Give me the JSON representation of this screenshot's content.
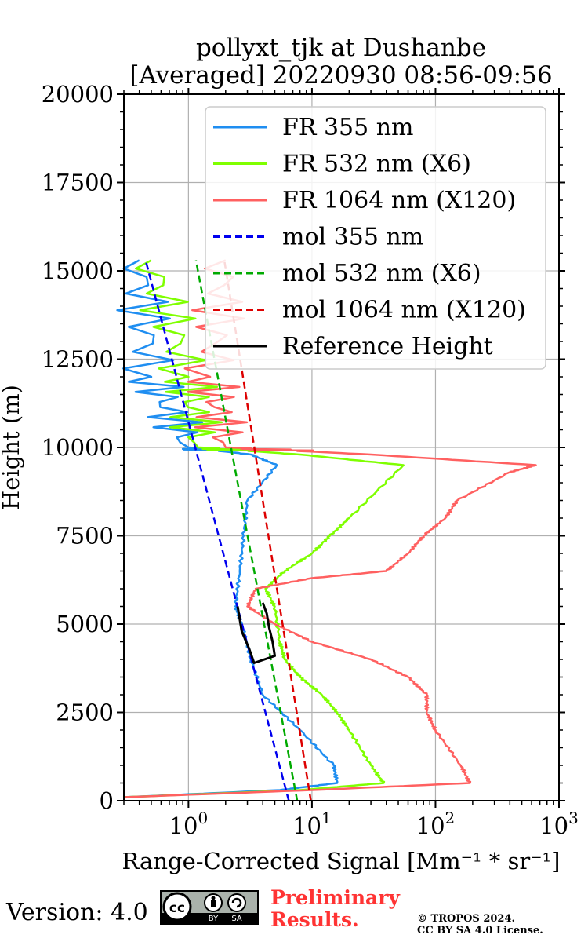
{
  "chart_data": {
    "type": "line",
    "title_line1": "pollyxt_tjk at Dushanbe",
    "title_line2": "[Averaged] 20220930 08:56-09:56",
    "xlabel": "Range-Corrected Signal [Mm⁻¹ * sr⁻¹]",
    "ylabel": "Height (m)",
    "xscale": "log",
    "xlim": [
      0.3,
      1000
    ],
    "ylim": [
      0,
      20000
    ],
    "yticks": [
      "0",
      "2500",
      "5000",
      "7500",
      "10000",
      "12500",
      "15000",
      "17500",
      "20000"
    ],
    "xticks": [
      {
        "base": "10",
        "exp": "0"
      },
      {
        "base": "10",
        "exp": "1"
      },
      {
        "base": "10",
        "exp": "2"
      },
      {
        "base": "10",
        "exp": "3"
      }
    ],
    "grid": true,
    "legend_position": "top-right",
    "series": [
      {
        "name": "FR 355 nm",
        "color": "#1f8ef1",
        "style": "solid",
        "x": [
          0.3,
          5.5,
          16,
          15,
          8,
          4,
          3.2,
          2.7,
          2.4,
          2.6,
          2.8,
          3.0,
          5.2,
          3.2,
          1.0,
          0.5,
          0.4
        ],
        "y": [
          100,
          300,
          500,
          1000,
          2000,
          3000,
          4000,
          5000,
          5500,
          6500,
          7500,
          8500,
          9500,
          9800,
          10000,
          12000,
          15300
        ]
      },
      {
        "name": "FR 532 nm (X6)",
        "color": "#7fff00",
        "style": "solid",
        "x": [
          0.3,
          8,
          38,
          30,
          20,
          16,
          12,
          8,
          6,
          5.5,
          5.0,
          4.2,
          6.0,
          10,
          14,
          20,
          55,
          8,
          1.2,
          1.0,
          0.5
        ],
        "y": [
          100,
          300,
          500,
          1000,
          2000,
          2500,
          3000,
          3500,
          4000,
          4500,
          5500,
          6000,
          6500,
          7000,
          7500,
          8000,
          9500,
          9800,
          10000,
          12000,
          15300
        ]
      },
      {
        "name": "FR 1064 nm (X120)",
        "color": "#ff6060",
        "style": "solid",
        "x": [
          0.3,
          10,
          190,
          160,
          100,
          85,
          85,
          60,
          30,
          10,
          5,
          3,
          3.5,
          10,
          40,
          60,
          80,
          120,
          150,
          400,
          650,
          30,
          2,
          1.5,
          2
        ],
        "y": [
          100,
          300,
          500,
          1000,
          2000,
          2500,
          3000,
          3500,
          4000,
          4500,
          5000,
          5500,
          6000,
          6300,
          6500,
          7000,
          7500,
          8000,
          8500,
          9300,
          9500,
          9800,
          10000,
          12000,
          15300
        ]
      },
      {
        "name": "mol 355 nm",
        "color": "#0000ee",
        "style": "dashed",
        "x": [
          6.5,
          0.45
        ],
        "y": [
          0,
          15300
        ]
      },
      {
        "name": "mol 532 nm (X6)",
        "color": "#00aa00",
        "style": "dashed",
        "x": [
          7.6,
          1.15
        ],
        "y": [
          0,
          15300
        ]
      },
      {
        "name": "mol 1064 nm (X120)",
        "color": "#dd0000",
        "style": "dashed",
        "x": [
          9.8,
          1.95
        ],
        "y": [
          0,
          15300
        ]
      },
      {
        "name": "Reference Height",
        "color": "#000000",
        "style": "solid",
        "x": [
          2.5,
          2.7,
          3.1,
          3.4,
          5.0,
          4.8,
          4.5,
          4.3,
          4.0
        ],
        "y": [
          5500,
          4800,
          4300,
          3900,
          4100,
          4500,
          4900,
          5300,
          5600
        ]
      }
    ]
  },
  "footer": {
    "version": "Version: 4.0",
    "license_badge": {
      "cc": "cc",
      "by": "BY",
      "sa": "SA"
    },
    "preliminary_line1": "Preliminary",
    "preliminary_line2": "Results.",
    "copyright_line1": "© TROPOS 2024.",
    "copyright_line2": "CC BY SA 4.0 License."
  }
}
